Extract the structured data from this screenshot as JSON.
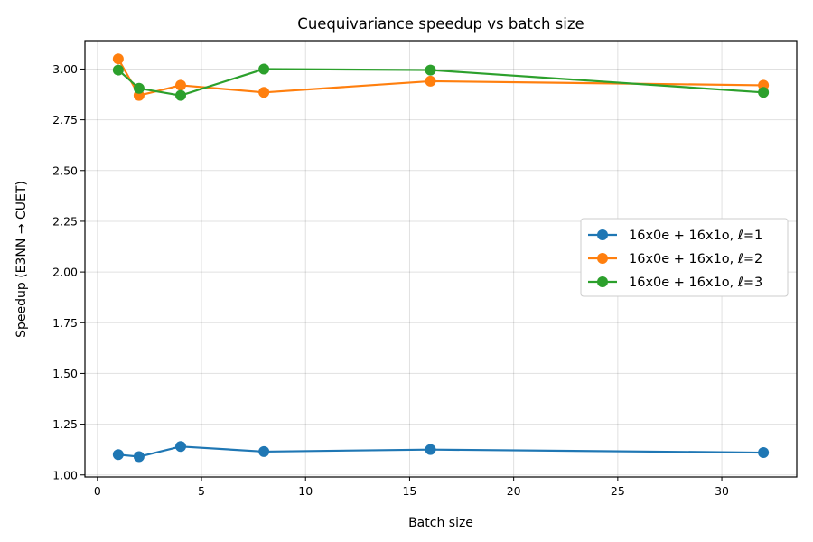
{
  "chart_data": {
    "type": "line",
    "title": "Cuequivariance speedup vs batch size",
    "xlabel": "Batch size",
    "ylabel": "Speedup (E3NN → CUET)",
    "xlim": [
      -0.6,
      33.6
    ],
    "ylim": [
      0.99,
      3.14
    ],
    "xticks": [
      0,
      5,
      10,
      15,
      20,
      25,
      30
    ],
    "yticks": [
      1.0,
      1.25,
      1.5,
      1.75,
      2.0,
      2.25,
      2.5,
      2.75,
      3.0
    ],
    "ytick_labels": [
      "1.00",
      "1.25",
      "1.50",
      "1.75",
      "2.00",
      "2.25",
      "2.50",
      "2.75",
      "3.00"
    ],
    "grid": true,
    "legend_position": "center-right",
    "x": [
      1,
      2,
      4,
      8,
      16,
      32
    ],
    "series": [
      {
        "name": "16x0e + 16x1o, ℓ=1",
        "color": "#1f77b4",
        "values": [
          1.1,
          1.09,
          1.14,
          1.115,
          1.125,
          1.11
        ]
      },
      {
        "name": "16x0e + 16x1o, ℓ=2",
        "color": "#ff7f0e",
        "values": [
          3.05,
          2.87,
          2.92,
          2.885,
          2.94,
          2.92
        ]
      },
      {
        "name": "16x0e + 16x1o, ℓ=3",
        "color": "#2ca02c",
        "values": [
          2.995,
          2.905,
          2.87,
          3.0,
          2.995,
          2.885
        ]
      }
    ]
  }
}
